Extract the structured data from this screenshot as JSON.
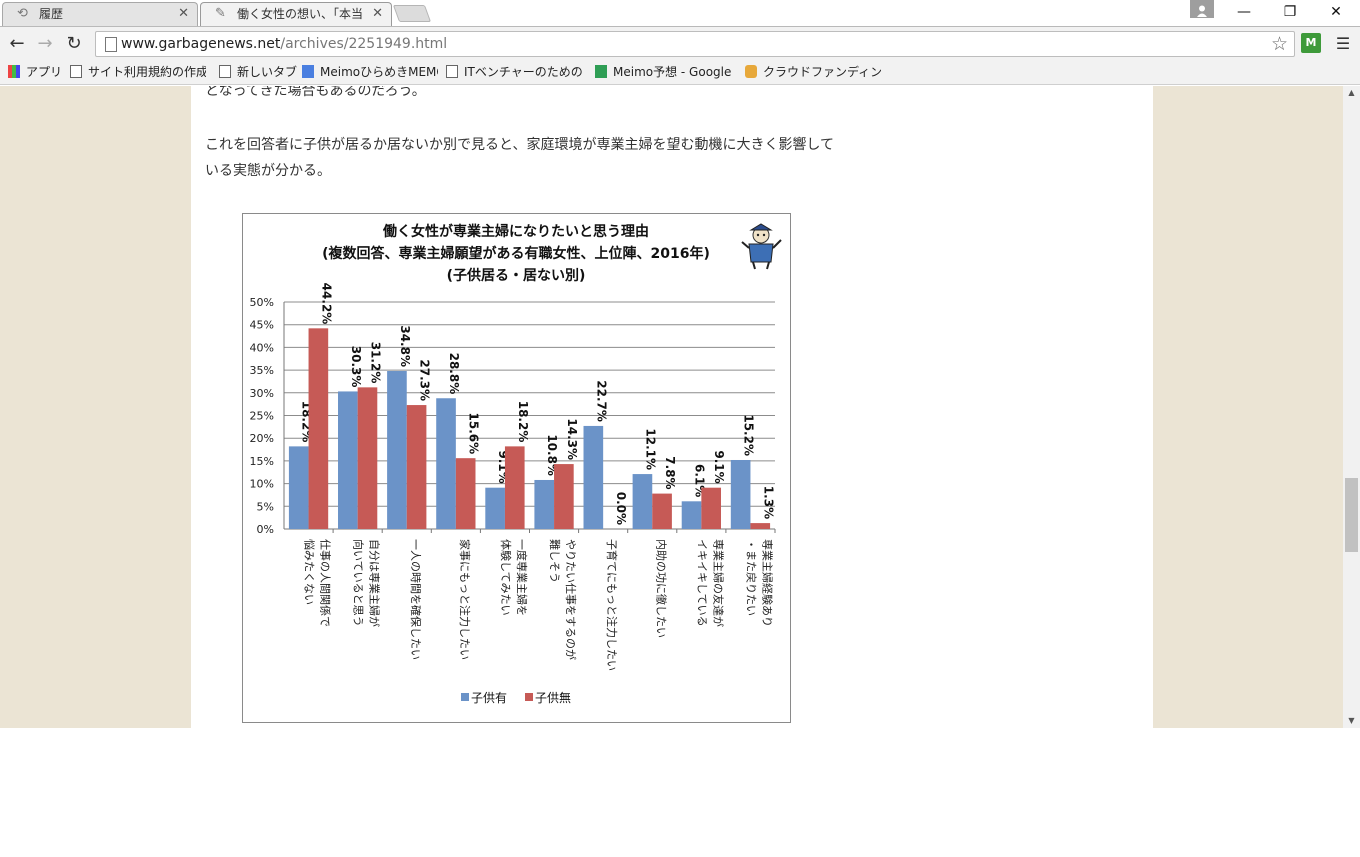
{
  "browser": {
    "tabs": [
      {
        "label": "履歴",
        "icon": "history-icon"
      },
      {
        "label": "働く女性の想い、「本当は専業主婦になりたい」",
        "icon": "site-favicon"
      }
    ],
    "url_host": "www.garbagenews.net",
    "url_path": "/archives/2251949.html",
    "bookmarks": [
      {
        "label": "アプリ",
        "icon": "apps-icon"
      },
      {
        "label": "サイト利用規約の作成の",
        "icon": "page-icon"
      },
      {
        "label": "新しいタブ",
        "icon": "page-icon"
      },
      {
        "label": "MeimoひらめきMEMO",
        "icon": "doc-icon"
      },
      {
        "label": "ITベンチャーのための特許",
        "icon": "page-icon"
      },
      {
        "label": "Meimo予想 - Google",
        "icon": "sheet-icon"
      },
      {
        "label": "クラウドファンディング - C",
        "icon": "crowdfunding-icon"
      }
    ]
  },
  "article": {
    "paragraph_1": "となってきた場合もあるのだろう。",
    "paragraph_2": "これを回答者に子供が居るか居ないか別で見ると、家庭環境が専業主婦を望む動機に大きく影響している実態が分かる。"
  },
  "chart_data": {
    "type": "bar",
    "title_lines": [
      "働く女性が専業主婦になりたいと思う理由",
      "(複数回答、専業主婦願望がある有職女性、上位陣、2016年)",
      "(子供居る・居ない別)"
    ],
    "categories": [
      [
        "仕事の人間関係で",
        "悩みたくない"
      ],
      [
        "自分は専業主婦が",
        "向いていると思う"
      ],
      [
        "一人の時間を確保したい"
      ],
      [
        "家事にもっと注力したい"
      ],
      [
        "一度専業主婦を",
        "体験してみたい"
      ],
      [
        "やりたい仕事をするのが",
        "難しそう"
      ],
      [
        "子育てにもっと注力したい"
      ],
      [
        "内助の功に徹したい"
      ],
      [
        "専業主婦の友達が",
        "イキイキしている"
      ],
      [
        "専業主婦経験あり",
        "・また戻りたい"
      ]
    ],
    "series": [
      {
        "name": "子供有",
        "color": "#6b93c8",
        "values": [
          18.2,
          30.3,
          34.8,
          28.8,
          9.1,
          10.8,
          22.7,
          12.1,
          6.1,
          15.2
        ]
      },
      {
        "name": "子供無",
        "color": "#c65a56",
        "values": [
          44.2,
          31.2,
          27.3,
          15.6,
          18.2,
          14.3,
          0.0,
          7.8,
          9.1,
          1.3
        ]
      }
    ],
    "y_ticks": [
      "0%",
      "5%",
      "10%",
      "15%",
      "20%",
      "25%",
      "30%",
      "35%",
      "40%",
      "45%",
      "50%"
    ],
    "ylim": [
      0,
      50
    ],
    "grid": true,
    "legend_position": "bottom"
  }
}
